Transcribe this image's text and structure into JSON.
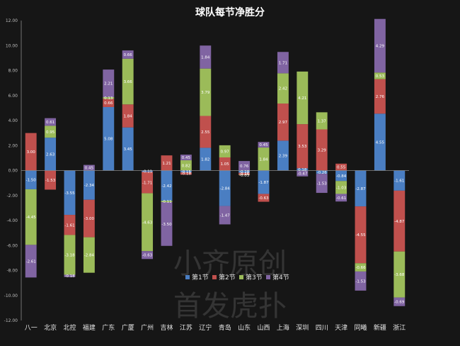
{
  "chart_data": {
    "type": "bar",
    "stacked": true,
    "title": "球队每节净胜分",
    "categories": [
      "八一",
      "北京",
      "北控",
      "福建",
      "广东",
      "广厦",
      "广州",
      "吉林",
      "江苏",
      "辽宁",
      "青岛",
      "山东",
      "山西",
      "上海",
      "深圳",
      "四川",
      "天津",
      "同曦",
      "新疆",
      "浙江"
    ],
    "series": [
      {
        "name": "第1节",
        "color": "#4a7ec2",
        "values": [
          -1.5,
          2.63,
          -3.55,
          -2.34,
          5.08,
          3.45,
          -0.11,
          -2.42,
          -0.15,
          1.82,
          -2.84,
          -0.18,
          -1.87,
          2.39,
          0.18,
          -0.26,
          -0.84,
          -2.87,
          4.55,
          -1.61
        ]
      },
      {
        "name": "第2节",
        "color": "#c0504d",
        "values": [
          3.0,
          -1.53,
          -1.61,
          -3.0,
          0.66,
          1.84,
          -1.71,
          1.21,
          -0.18,
          2.55,
          1.05,
          -0.16,
          -0.63,
          2.97,
          3.53,
          3.29,
          0.55,
          -4.55,
          2.76,
          -4.87
        ]
      },
      {
        "name": "第3节",
        "color": "#9bbb59",
        "values": [
          -4.45,
          0.95,
          -3.18,
          -2.84,
          0.13,
          3.66,
          -4.63,
          -0.11,
          0.82,
          3.79,
          0.97,
          -0.03,
          1.84,
          2.42,
          4.21,
          1.37,
          -1.03,
          -0.66,
          0.53,
          -3.68
        ]
      },
      {
        "name": "第4节",
        "color": "#8064a2",
        "values": [
          -2.61,
          0.61,
          -0.18,
          0.45,
          2.21,
          0.66,
          -0.63,
          -3.5,
          0.45,
          1.84,
          -1.47,
          0.76,
          0.45,
          1.71,
          -0.47,
          -1.53,
          -0.61,
          -1.53,
          4.29,
          -0.69
        ]
      }
    ],
    "ylim": [
      -12,
      12
    ],
    "ytick_step": 2,
    "grid": false,
    "legend_position": "bottom-center",
    "watermark": [
      "小齐原创",
      "首发虎扑"
    ]
  }
}
